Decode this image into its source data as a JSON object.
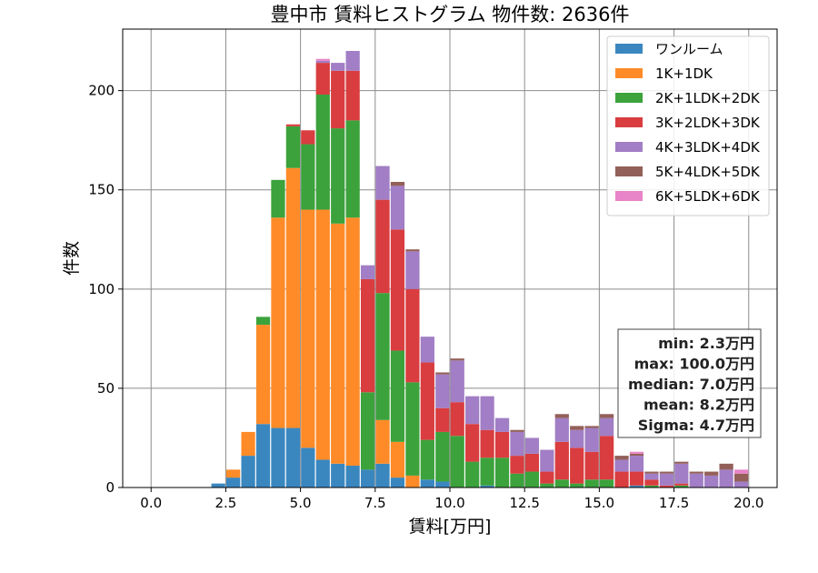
{
  "chart_data": {
    "type": "bar",
    "stacked": true,
    "title": "豊中市 賃料ヒストグラム  物件数: 2636件",
    "xlabel": "賃料[万円]",
    "ylabel": "件数",
    "xlim": [
      -0.95,
      20.95
    ],
    "ylim": [
      0,
      231
    ],
    "xticks": [
      0.0,
      2.5,
      5.0,
      7.5,
      10.0,
      12.5,
      15.0,
      17.5,
      20.0
    ],
    "xtick_labels": [
      "0.0",
      "2.5",
      "5.0",
      "7.5",
      "10.0",
      "12.5",
      "15.0",
      "17.5",
      "20.0"
    ],
    "yticks": [
      0,
      50,
      100,
      150,
      200
    ],
    "ytick_labels": [
      "0",
      "50",
      "100",
      "150",
      "200"
    ],
    "grid": true,
    "legend_position": "top-right",
    "bin_width": 0.5,
    "bin_starts": [
      0.0,
      0.5,
      1.0,
      1.5,
      2.0,
      2.5,
      3.0,
      3.5,
      4.0,
      4.5,
      5.0,
      5.5,
      6.0,
      6.5,
      7.0,
      7.5,
      8.0,
      8.5,
      9.0,
      9.5,
      10.0,
      10.5,
      11.0,
      11.5,
      12.0,
      12.5,
      13.0,
      13.5,
      14.0,
      14.5,
      15.0,
      15.5,
      16.0,
      16.5,
      17.0,
      17.5,
      18.0,
      18.5,
      19.0,
      19.5
    ],
    "series": [
      {
        "name": "ワンルーム",
        "color": "#3a87c0",
        "values": [
          0,
          0,
          0,
          0,
          2,
          5,
          16,
          32,
          30,
          30,
          20,
          14,
          12,
          11,
          9,
          12,
          5,
          0,
          4,
          3,
          0,
          0,
          1,
          0,
          0,
          0,
          0,
          0,
          0,
          0,
          0,
          0,
          1,
          0,
          0,
          0,
          0,
          0,
          0,
          0
        ]
      },
      {
        "name": "1K+1DK",
        "color": "#ff8b28",
        "values": [
          0,
          0,
          0,
          0,
          0,
          4,
          12,
          50,
          106,
          131,
          120,
          126,
          121,
          125,
          0,
          22,
          18,
          6,
          0,
          0,
          0,
          0,
          0,
          0,
          0,
          0,
          0,
          0,
          0,
          0,
          0,
          0,
          0,
          0,
          0,
          0,
          0,
          0,
          0,
          0
        ]
      },
      {
        "name": "2K+1LDK+2DK",
        "color": "#3ca23c",
        "values": [
          0,
          0,
          0,
          0,
          0,
          0,
          0,
          4,
          19,
          21,
          33,
          58,
          48,
          49,
          39,
          64,
          46,
          47,
          20,
          25,
          26,
          13,
          14,
          15,
          7,
          8,
          2,
          4,
          2,
          4,
          4,
          0,
          0,
          1,
          0,
          1,
          0,
          0,
          0,
          0
        ]
      },
      {
        "name": "3K+2LDK+3DK",
        "color": "#d93d3f",
        "values": [
          0,
          0,
          0,
          0,
          0,
          0,
          0,
          0,
          0,
          1,
          7,
          16,
          29,
          25,
          57,
          47,
          61,
          47,
          39,
          12,
          17,
          19,
          14,
          13,
          9,
          9,
          6,
          19,
          18,
          14,
          22,
          8,
          7,
          3,
          1,
          1,
          0,
          0,
          0,
          0
        ]
      },
      {
        "name": "4K+3LDK+4DK",
        "color": "#a17ec5",
        "values": [
          0,
          0,
          0,
          0,
          0,
          0,
          0,
          0,
          0,
          0,
          0,
          1,
          4,
          10,
          7,
          17,
          22,
          19,
          13,
          17,
          21,
          14,
          17,
          7,
          12,
          8,
          11,
          12,
          9,
          12,
          9,
          6,
          8,
          3,
          6,
          10,
          7,
          6,
          9,
          3
        ]
      },
      {
        "name": "5K+4LDK+5DK",
        "color": "#936059",
        "values": [
          0,
          0,
          0,
          0,
          0,
          0,
          0,
          0,
          0,
          0,
          0,
          0,
          0,
          0,
          0,
          0,
          2,
          1,
          0,
          1,
          1,
          0,
          0,
          0,
          1,
          0,
          0,
          2,
          2,
          1,
          2,
          2,
          1,
          1,
          1,
          1,
          1,
          2,
          3,
          4
        ]
      },
      {
        "name": "6K+5LDK+6DK",
        "color": "#e884c8",
        "values": [
          0,
          0,
          0,
          0,
          0,
          0,
          0,
          0,
          0,
          0,
          0,
          1,
          0,
          0,
          0,
          0,
          0,
          0,
          0,
          0,
          0,
          0,
          0,
          0,
          0,
          0,
          0,
          0,
          0,
          0,
          0,
          0,
          1,
          0,
          0,
          0,
          0,
          0,
          0,
          2
        ]
      }
    ],
    "stats": [
      "min: 2.3万円",
      "max: 100.0万円",
      "median: 7.0万円",
      "mean: 8.2万円",
      "Sigma: 4.7万円"
    ]
  }
}
